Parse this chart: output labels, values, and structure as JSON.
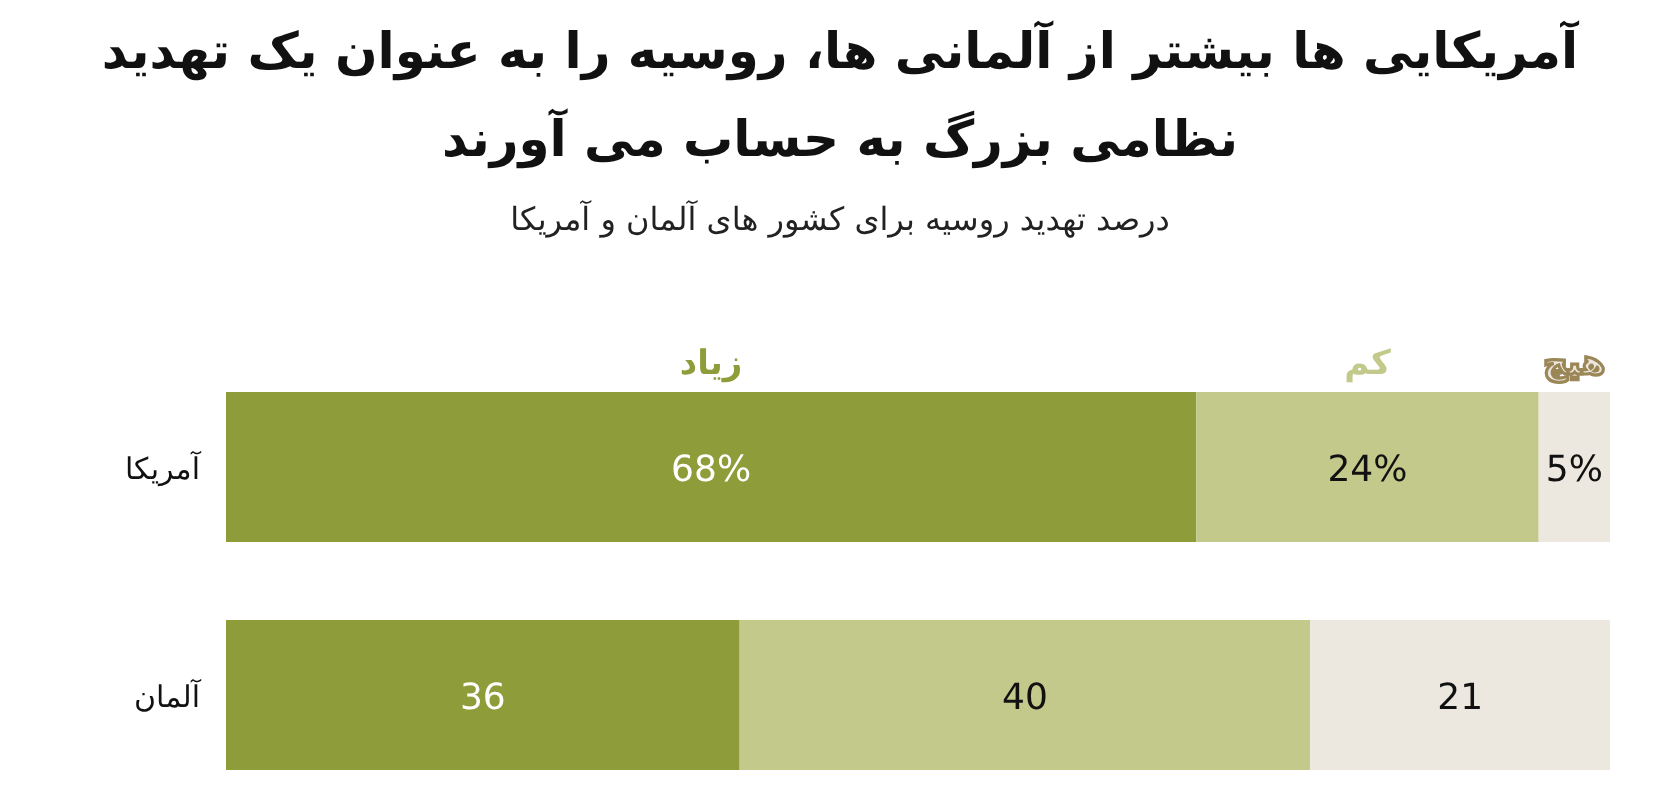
{
  "chart_data": {
    "type": "bar",
    "orientation": "horizontal",
    "stacked": true,
    "title": "آمریکایی ها بیشتر از آلمانی ها، روسیه را به عنوان یک تهدید نظامی بزرگ به حساب می آورند",
    "subtitle": "درصد تهدید روسیه برای کشور های آلمان و آمریکا",
    "categories": [
      "آمریکا",
      "آلمان"
    ],
    "legend": "top",
    "series": [
      {
        "name": "زیاد",
        "color": "#8f9c3a",
        "values": [
          68,
          36
        ],
        "value_labels": [
          "68%",
          "36"
        ]
      },
      {
        "name": "کم",
        "color": "#c3c98a",
        "values": [
          24,
          40
        ],
        "value_labels": [
          "24%",
          "40"
        ]
      },
      {
        "name": "هیچ",
        "color": "#ece8df",
        "values": [
          5,
          21
        ],
        "value_labels": [
          "5%",
          "21"
        ]
      }
    ]
  }
}
